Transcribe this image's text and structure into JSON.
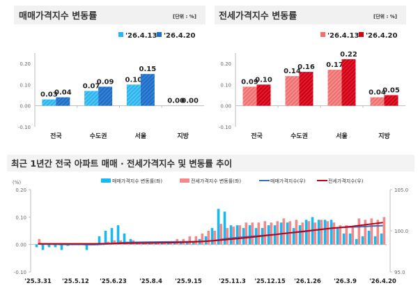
{
  "chart_data": [
    {
      "type": "bar",
      "title": "매매가격지수 변동률",
      "unit": "[단위 : %]",
      "categories": [
        "전국",
        "수도권",
        "서울",
        "지방"
      ],
      "series": [
        {
          "name": "'26.4.13",
          "values": [
            0.03,
            0.07,
            0.1,
            0.0
          ],
          "color": "#29b6ee"
        },
        {
          "name": "'26.4.20",
          "values": [
            0.04,
            0.09,
            0.15,
            0.0
          ],
          "color": "#1d6fc9"
        }
      ],
      "data_labels": [
        [
          "0.03",
          "0.07",
          "0.10",
          "0.00"
        ],
        [
          "0.04",
          "0.09",
          "0.15",
          "0.00"
        ]
      ],
      "yticks": [
        "0.20",
        "0.10",
        "0.00",
        "-0.10"
      ],
      "ylim": [
        -0.1,
        0.2
      ],
      "legend": "top-right"
    },
    {
      "type": "bar",
      "title": "전세가격지수 변동률",
      "unit": "[단위 : %]",
      "categories": [
        "전국",
        "수도권",
        "서울",
        "지방"
      ],
      "series": [
        {
          "name": "'26.4.13",
          "values": [
            0.09,
            0.14,
            0.17,
            0.04
          ],
          "color": "#f07070"
        },
        {
          "name": "'26.4.20",
          "values": [
            0.1,
            0.16,
            0.22,
            0.05
          ],
          "color": "#d40014"
        }
      ],
      "data_labels": [
        [
          "0.09",
          "0.14",
          "0.17",
          "0.04"
        ],
        [
          "0.10",
          "0.16",
          "0.22",
          "0.05"
        ]
      ],
      "yticks": [
        "0.20",
        "0.10",
        "0.00",
        "-0.10"
      ],
      "ylim": [
        -0.1,
        0.2
      ],
      "legend": "top-right"
    },
    {
      "type": "bar+line",
      "title": "최근 1년간 전국 아파트 매매 · 전세가격지수 및 변동률 추이",
      "ylabel_left": "(%)",
      "ylim_left": [
        -0.1,
        0.2
      ],
      "ylim_right": [
        95.0,
        105.0
      ],
      "yticks_left": [
        "0.20",
        "0.10",
        "0.00",
        "-0.10"
      ],
      "yticks_right": [
        "105.0",
        "100.0",
        "95.0"
      ],
      "xtick_labels": [
        "'25.3.31",
        "'25.5.12",
        "'25.6.23",
        "'25.8.4",
        "'25.9.15",
        "'25.11.3",
        "'25.12.15",
        "'26.1.26",
        "'26.3.9",
        "'26.4.20"
      ],
      "xtick_weeks": [
        0,
        6,
        12,
        18,
        24,
        31,
        37,
        43,
        49,
        55
      ],
      "legend": "top",
      "series": [
        {
          "name": "매매가격지수 변동률(좌)",
          "kind": "bar",
          "axis": "left",
          "color": "#18b9f0",
          "values": [
            -0.01,
            -0.02,
            -0.01,
            -0.01,
            -0.02,
            -0.005,
            0.0,
            0.0,
            -0.02,
            0.0,
            0.03,
            0.05,
            0.06,
            0.07,
            0.04,
            0.02,
            0.01,
            0.01,
            0.01,
            0.01,
            0.01,
            0.01,
            0.01,
            0.01,
            0.01,
            0.01,
            0.02,
            0.03,
            0.06,
            0.13,
            0.12,
            0.07,
            0.07,
            0.06,
            0.07,
            0.06,
            0.06,
            0.07,
            0.07,
            0.08,
            0.08,
            0.06,
            0.07,
            0.09,
            0.1,
            0.09,
            0.09,
            0.09,
            0.06,
            0.04,
            0.04,
            0.02,
            0.03,
            0.05,
            0.03,
            0.04
          ]
        },
        {
          "name": "전세가격지수 변동률(좌)",
          "kind": "bar",
          "axis": "left",
          "color": "#f58888",
          "values": [
            0.02,
            0.0,
            0.0,
            0.0,
            0.0,
            0.0,
            0.0,
            0.0,
            0.0,
            0.005,
            0.005,
            0.01,
            0.015,
            0.015,
            0.01,
            0.015,
            0.01,
            0.005,
            0.01,
            0.01,
            0.01,
            0.01,
            0.02,
            0.02,
            0.03,
            0.03,
            0.04,
            0.05,
            0.05,
            0.075,
            0.06,
            0.065,
            0.07,
            0.08,
            0.08,
            0.08,
            0.085,
            0.08,
            0.085,
            0.095,
            0.085,
            0.09,
            0.08,
            0.085,
            0.08,
            0.09,
            0.085,
            0.08,
            0.07,
            0.07,
            0.065,
            0.095,
            0.09,
            0.095,
            0.09,
            0.1
          ]
        },
        {
          "name": "매매가격지수(우)",
          "kind": "line",
          "axis": "right",
          "color": "#2e6fc0",
          "values": [
            98.4,
            98.38,
            98.37,
            98.36,
            98.34,
            98.34,
            98.34,
            98.34,
            98.32,
            98.32,
            98.35,
            98.4,
            98.46,
            98.53,
            98.57,
            98.59,
            98.6,
            98.61,
            98.62,
            98.63,
            98.64,
            98.65,
            98.66,
            98.67,
            98.68,
            98.69,
            98.71,
            98.74,
            98.8,
            98.92,
            99.04,
            99.11,
            99.18,
            99.24,
            99.31,
            99.37,
            99.43,
            99.5,
            99.57,
            99.65,
            99.73,
            99.79,
            99.86,
            99.95,
            100.05,
            100.14,
            100.23,
            100.32,
            100.38,
            100.42,
            100.46,
            100.48,
            100.51,
            100.56,
            100.59,
            100.63
          ]
        },
        {
          "name": "전세가격지수(우)",
          "kind": "line",
          "axis": "right",
          "color": "#c00010",
          "values": [
            98.42,
            98.42,
            98.42,
            98.42,
            98.42,
            98.42,
            98.42,
            98.42,
            98.42,
            98.42,
            98.43,
            98.44,
            98.45,
            98.47,
            98.48,
            98.5,
            98.51,
            98.51,
            98.52,
            98.53,
            98.54,
            98.55,
            98.57,
            98.59,
            98.62,
            98.65,
            98.69,
            98.74,
            98.79,
            98.86,
            98.92,
            98.99,
            99.06,
            99.14,
            99.22,
            99.3,
            99.39,
            99.47,
            99.55,
            99.65,
            99.73,
            99.82,
            99.9,
            99.99,
            100.07,
            100.16,
            100.24,
            100.32,
            100.39,
            100.46,
            100.52,
            100.62,
            100.71,
            100.81,
            100.9,
            101.0
          ]
        }
      ]
    }
  ]
}
